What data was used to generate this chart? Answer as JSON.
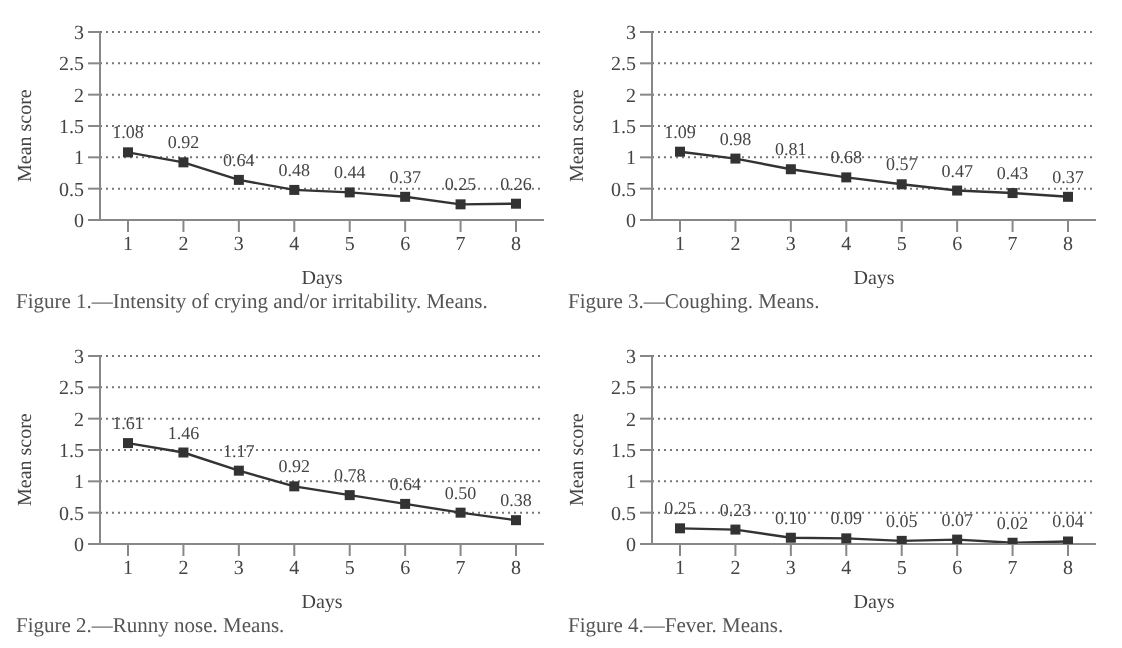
{
  "chart_data": [
    {
      "type": "line",
      "xlabel": "Days",
      "ylabel": "Mean score",
      "categories": [
        "1",
        "2",
        "3",
        "4",
        "5",
        "6",
        "7",
        "8"
      ],
      "series": [
        {
          "color": "#333333",
          "values": [
            1.08,
            0.92,
            0.64,
            0.48,
            0.44,
            0.37,
            0.25,
            0.26
          ],
          "value_labels": [
            "1.08",
            "0.92",
            "0.64",
            "0.48",
            "0.44",
            "0.37",
            "0.25",
            "0.26"
          ]
        }
      ],
      "ylim": [
        0,
        3
      ],
      "yticks": [
        0,
        0.5,
        1,
        1.5,
        2,
        2.5,
        3
      ],
      "grid": "y",
      "marker": "square",
      "line_style": "solid",
      "legend": false,
      "annotations": [
        "Figure 1.—Intensity of crying and/or irritability. Means."
      ]
    },
    {
      "type": "line",
      "xlabel": "Days",
      "ylabel": "Mean score",
      "categories": [
        "1",
        "2",
        "3",
        "4",
        "5",
        "6",
        "7",
        "8"
      ],
      "series": [
        {
          "color": "#333333",
          "values": [
            1.09,
            0.98,
            0.81,
            0.68,
            0.57,
            0.47,
            0.43,
            0.37
          ],
          "value_labels": [
            "1.09",
            "0.98",
            "0.81",
            "0.68",
            "0.57",
            "0.47",
            "0.43",
            "0.37"
          ]
        }
      ],
      "ylim": [
        0,
        3
      ],
      "yticks": [
        0,
        0.5,
        1,
        1.5,
        2,
        2.5,
        3
      ],
      "grid": "y",
      "marker": "square",
      "line_style": "solid",
      "legend": false,
      "annotations": [
        "Figure 3.—Coughing. Means."
      ]
    },
    {
      "type": "line",
      "xlabel": "Days",
      "ylabel": "Mean score",
      "categories": [
        "1",
        "2",
        "3",
        "4",
        "5",
        "6",
        "7",
        "8"
      ],
      "series": [
        {
          "color": "#333333",
          "values": [
            1.61,
            1.46,
            1.17,
            0.92,
            0.78,
            0.64,
            0.5,
            0.38
          ],
          "value_labels": [
            "1.61",
            "1.46",
            "1.17",
            "0.92",
            "0.78",
            "0.64",
            "0.50",
            "0.38"
          ]
        }
      ],
      "ylim": [
        0,
        3
      ],
      "yticks": [
        0,
        0.5,
        1,
        1.5,
        2,
        2.5,
        3
      ],
      "grid": "y",
      "marker": "square",
      "line_style": "solid",
      "legend": false,
      "annotations": [
        "Figure 2.—Runny nose. Means."
      ]
    },
    {
      "type": "line",
      "xlabel": "Days",
      "ylabel": "Mean score",
      "categories": [
        "1",
        "2",
        "3",
        "4",
        "5",
        "6",
        "7",
        "8"
      ],
      "series": [
        {
          "color": "#333333",
          "values": [
            0.25,
            0.23,
            0.1,
            0.09,
            0.05,
            0.07,
            0.02,
            0.04
          ],
          "value_labels": [
            "0.25",
            "0.23",
            "0.10",
            "0.09",
            "0.05",
            "0.07",
            "0.02",
            "0.04"
          ]
        }
      ],
      "ylim": [
        0,
        3
      ],
      "yticks": [
        0,
        0.5,
        1,
        1.5,
        2,
        2.5,
        3
      ],
      "grid": "y",
      "marker": "square",
      "line_style": "solid",
      "legend": false,
      "annotations": [
        "Figure 4.—Fever. Means."
      ]
    }
  ]
}
